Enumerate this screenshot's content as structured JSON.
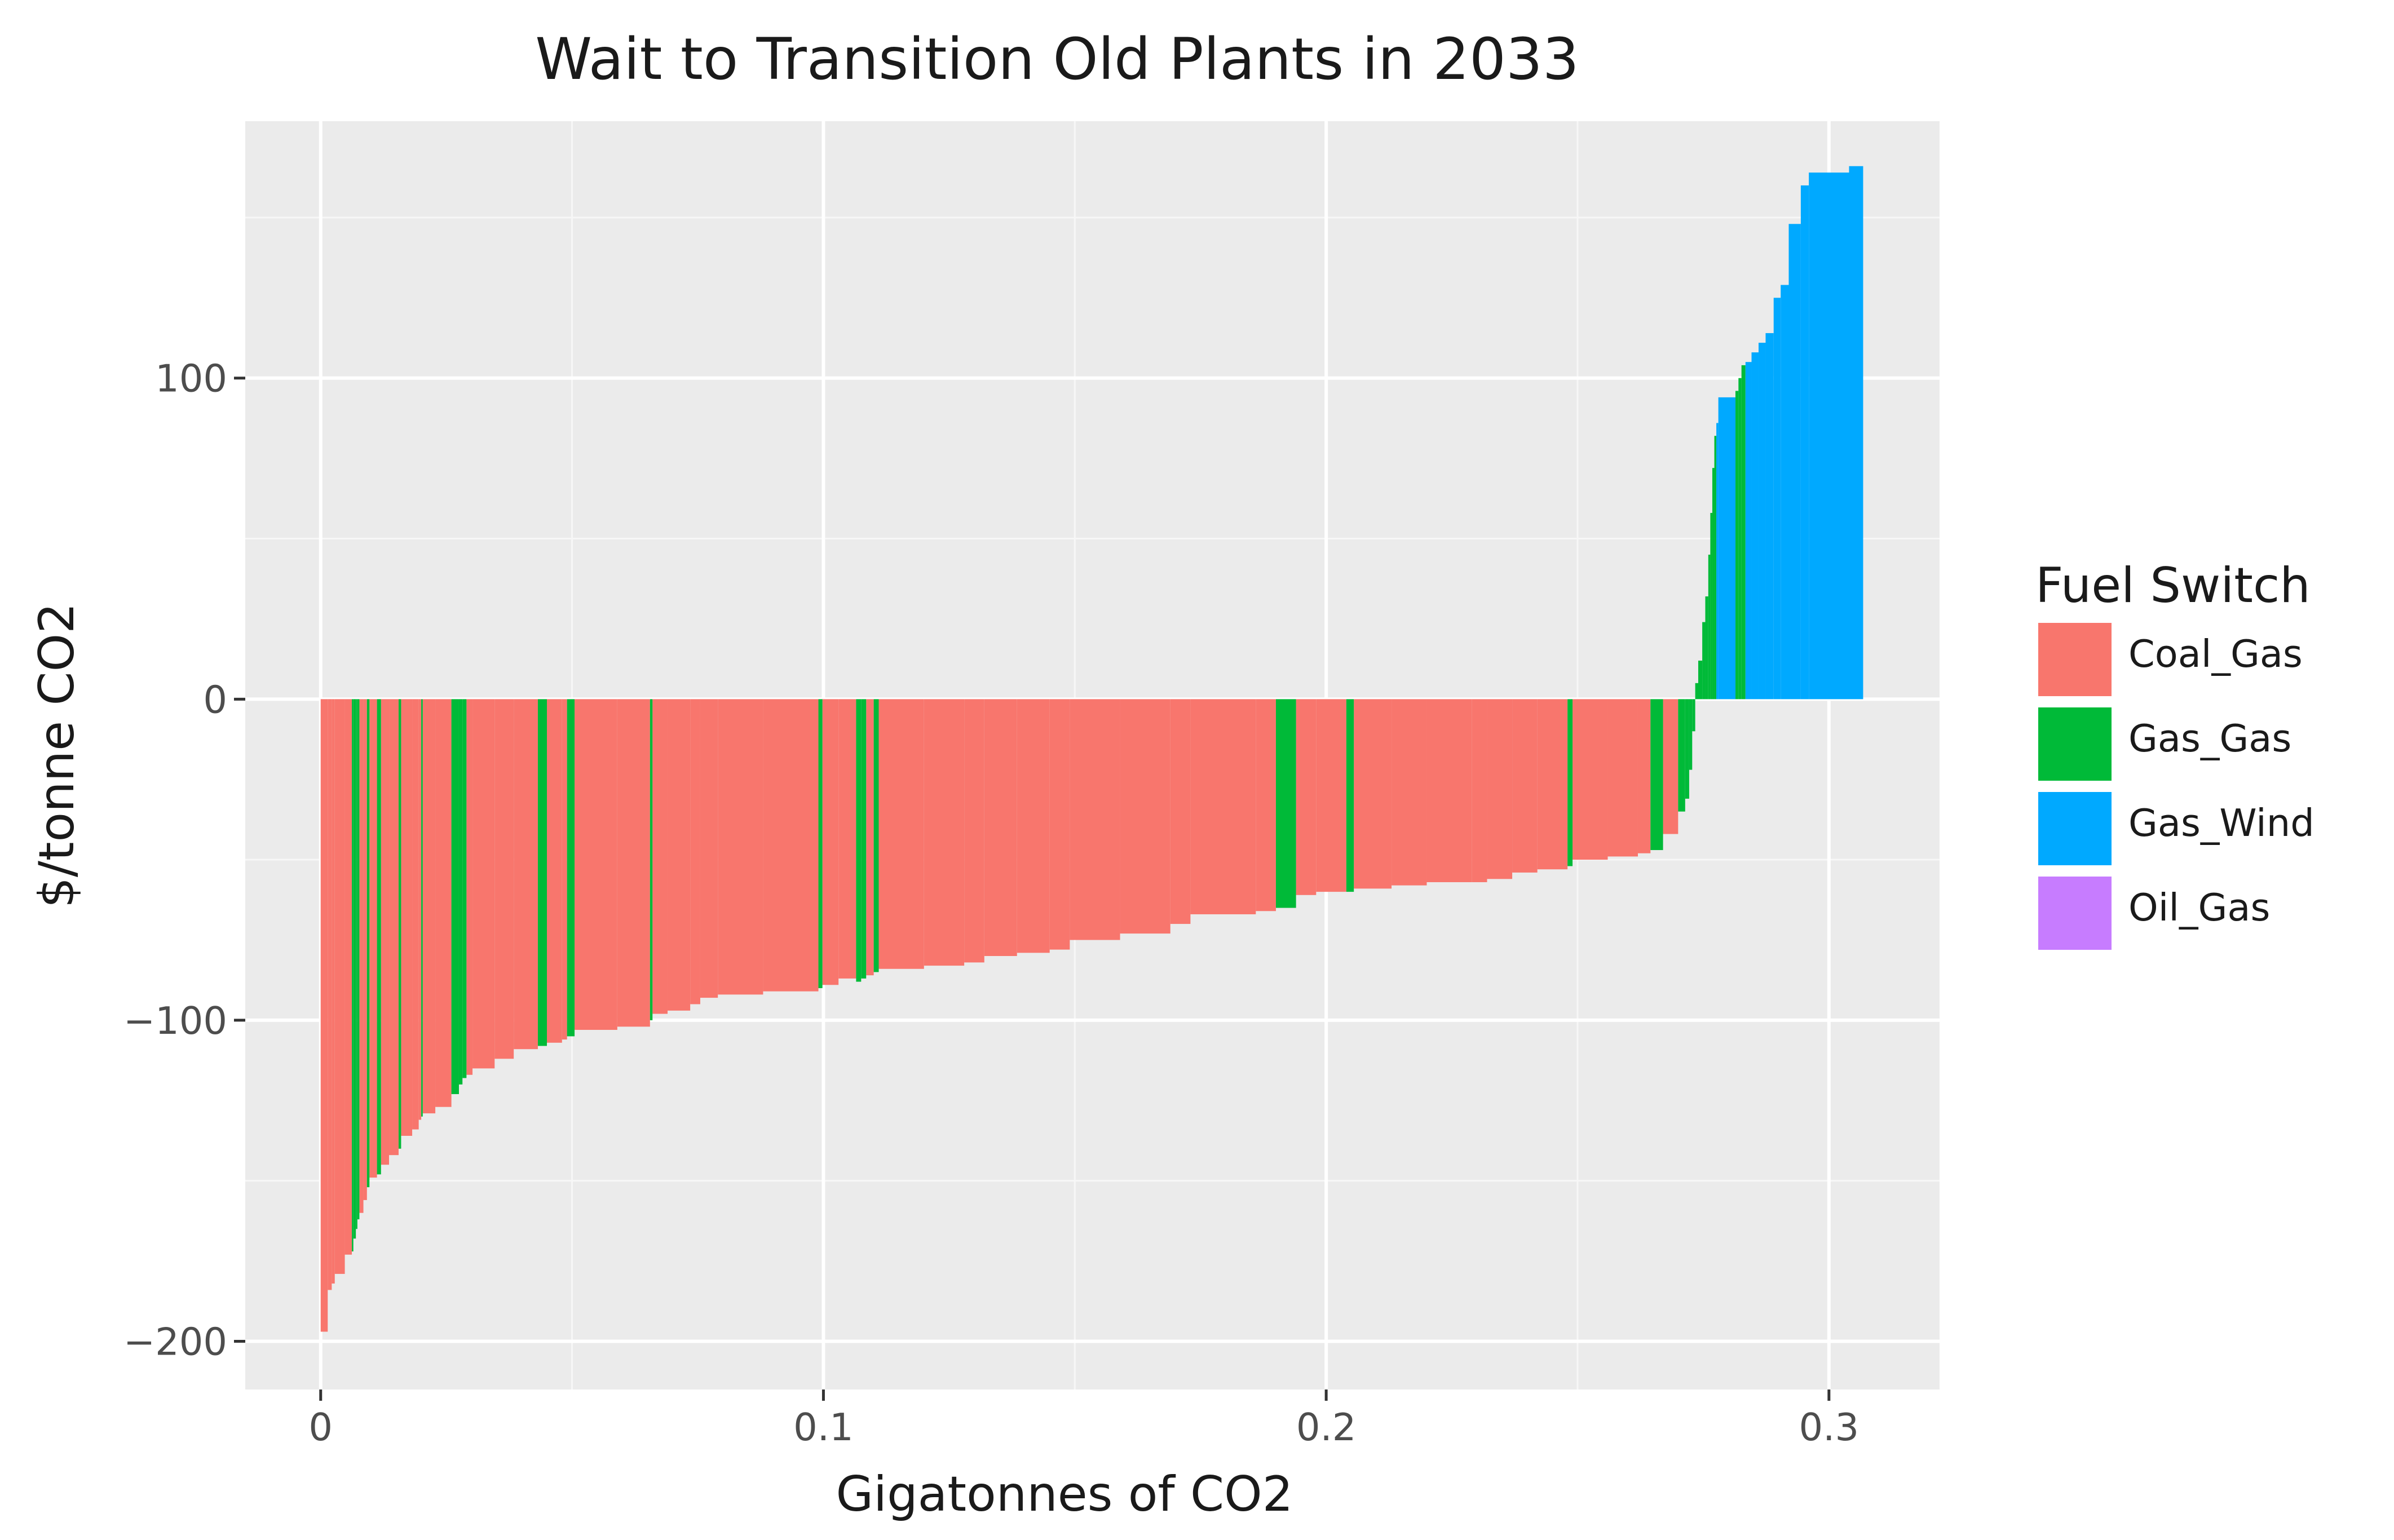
{
  "chart_data": {
    "type": "bar",
    "title": "Wait to Transition Old Plants in 2033",
    "xlabel": "Gigatonnes of CO2",
    "ylabel": "$/tonne CO2",
    "xlim": [
      -0.015,
      0.322
    ],
    "ylim": [
      -215,
      180
    ],
    "x_ticks": [
      0,
      0.1,
      0.2,
      0.3
    ],
    "x_tick_labels": [
      "0",
      "0.1",
      "0.2",
      "0.3"
    ],
    "y_ticks": [
      -200,
      -100,
      0,
      100
    ],
    "y_tick_labels": [
      "−200",
      "−100",
      "0",
      "100"
    ],
    "grid": true,
    "legend": {
      "title": "Fuel Switch",
      "position": "right",
      "items": [
        {
          "name": "Coal_Gas",
          "color": "#F8766D"
        },
        {
          "name": "Gas_Gas",
          "color": "#00BA38"
        },
        {
          "name": "Gas_Wind",
          "color": "#00A9FF"
        },
        {
          "name": "Oil_Gas",
          "color": "#C77CFF"
        }
      ]
    },
    "series": [
      {
        "name": "Coal_Gas",
        "color": "#F8766D",
        "values": [
          [
            0.0,
            0.0014,
            -197
          ],
          [
            0.0014,
            0.0022,
            -184
          ],
          [
            0.0022,
            0.0028,
            -182
          ],
          [
            0.0028,
            0.0048,
            -179
          ],
          [
            0.0048,
            0.0062,
            -173
          ],
          [
            0.0077,
            0.0085,
            -160
          ],
          [
            0.0085,
            0.0092,
            -156
          ],
          [
            0.0097,
            0.0112,
            -149
          ],
          [
            0.012,
            0.0136,
            -145
          ],
          [
            0.0136,
            0.0155,
            -142
          ],
          [
            0.016,
            0.0182,
            -136
          ],
          [
            0.0182,
            0.0195,
            -134
          ],
          [
            0.0195,
            0.02,
            -131
          ],
          [
            0.0203,
            0.0228,
            -129
          ],
          [
            0.0228,
            0.026,
            -127
          ],
          [
            0.029,
            0.0302,
            -117
          ],
          [
            0.0302,
            0.0346,
            -115
          ],
          [
            0.0346,
            0.0384,
            -112
          ],
          [
            0.0384,
            0.0432,
            -109
          ],
          [
            0.045,
            0.048,
            -107
          ],
          [
            0.048,
            0.049,
            -106
          ],
          [
            0.0505,
            0.059,
            -103
          ],
          [
            0.059,
            0.0655,
            -102
          ],
          [
            0.066,
            0.069,
            -98
          ],
          [
            0.069,
            0.0735,
            -97
          ],
          [
            0.0735,
            0.0755,
            -95
          ],
          [
            0.0755,
            0.079,
            -93
          ],
          [
            0.079,
            0.088,
            -92
          ],
          [
            0.088,
            0.099,
            -91
          ],
          [
            0.0998,
            0.103,
            -89
          ],
          [
            0.103,
            0.1065,
            -87
          ],
          [
            0.1085,
            0.11,
            -86
          ],
          [
            0.111,
            0.12,
            -84
          ],
          [
            0.12,
            0.128,
            -83
          ],
          [
            0.128,
            0.132,
            -82
          ],
          [
            0.132,
            0.1385,
            -80
          ],
          [
            0.1385,
            0.145,
            -79
          ],
          [
            0.145,
            0.149,
            -78
          ],
          [
            0.149,
            0.159,
            -75
          ],
          [
            0.159,
            0.169,
            -73
          ],
          [
            0.169,
            0.173,
            -70
          ],
          [
            0.173,
            0.186,
            -67
          ],
          [
            0.186,
            0.19,
            -66
          ],
          [
            0.194,
            0.198,
            -61
          ],
          [
            0.198,
            0.204,
            -60
          ],
          [
            0.2055,
            0.213,
            -59
          ],
          [
            0.213,
            0.22,
            -58
          ],
          [
            0.22,
            0.229,
            -57
          ],
          [
            0.229,
            0.232,
            -57
          ],
          [
            0.232,
            0.237,
            -56
          ],
          [
            0.237,
            0.242,
            -54
          ],
          [
            0.242,
            0.248,
            -53
          ],
          [
            0.249,
            0.256,
            -50
          ],
          [
            0.256,
            0.262,
            -49
          ],
          [
            0.262,
            0.2645,
            -48
          ],
          [
            0.267,
            0.27,
            -42
          ]
        ]
      },
      {
        "name": "Gas_Gas",
        "color": "#00BA38",
        "values": [
          [
            0.0062,
            0.0065,
            -172
          ],
          [
            0.0065,
            0.007,
            -168
          ],
          [
            0.007,
            0.0073,
            -165
          ],
          [
            0.0073,
            0.0077,
            -162
          ],
          [
            0.0092,
            0.0097,
            -152
          ],
          [
            0.0112,
            0.012,
            -148
          ],
          [
            0.0155,
            0.016,
            -140
          ],
          [
            0.02,
            0.0203,
            -130
          ],
          [
            0.026,
            0.0275,
            -123
          ],
          [
            0.0275,
            0.0282,
            -120
          ],
          [
            0.0282,
            0.029,
            -118
          ],
          [
            0.0432,
            0.045,
            -108
          ],
          [
            0.049,
            0.0505,
            -105
          ],
          [
            0.0655,
            0.066,
            -100
          ],
          [
            0.099,
            0.0998,
            -90
          ],
          [
            0.1065,
            0.1075,
            -88
          ],
          [
            0.1075,
            0.1085,
            -87
          ],
          [
            0.11,
            0.111,
            -85
          ],
          [
            0.19,
            0.194,
            -65
          ],
          [
            0.204,
            0.2055,
            -60
          ],
          [
            0.248,
            0.249,
            -52
          ],
          [
            0.2645,
            0.267,
            -47
          ],
          [
            0.27,
            0.2714,
            -35
          ],
          [
            0.2714,
            0.2722,
            -31
          ],
          [
            0.2722,
            0.2728,
            -22
          ],
          [
            0.2728,
            0.2734,
            -10
          ],
          [
            0.2734,
            0.274,
            5
          ],
          [
            0.274,
            0.2748,
            12
          ],
          [
            0.2748,
            0.2754,
            24
          ],
          [
            0.2754,
            0.276,
            32
          ],
          [
            0.276,
            0.2764,
            45
          ],
          [
            0.2764,
            0.2768,
            58
          ],
          [
            0.2768,
            0.2772,
            72
          ],
          [
            0.2772,
            0.2776,
            82
          ],
          [
            0.2814,
            0.282,
            96
          ],
          [
            0.282,
            0.2826,
            100
          ],
          [
            0.2826,
            0.2834,
            104
          ]
        ]
      },
      {
        "name": "Gas_Wind",
        "color": "#00A9FF",
        "values": [
          [
            0.2776,
            0.278,
            86
          ],
          [
            0.278,
            0.2814,
            94
          ],
          [
            0.2834,
            0.2846,
            105
          ],
          [
            0.2846,
            0.286,
            108
          ],
          [
            0.286,
            0.2874,
            111
          ],
          [
            0.2874,
            0.289,
            114
          ],
          [
            0.289,
            0.2904,
            125
          ],
          [
            0.2904,
            0.292,
            129
          ],
          [
            0.292,
            0.2944,
            148
          ],
          [
            0.2944,
            0.296,
            160
          ],
          [
            0.296,
            0.304,
            164
          ],
          [
            0.304,
            0.3068,
            166
          ]
        ]
      },
      {
        "name": "Oil_Gas",
        "color": "#C77CFF",
        "values": []
      }
    ]
  }
}
